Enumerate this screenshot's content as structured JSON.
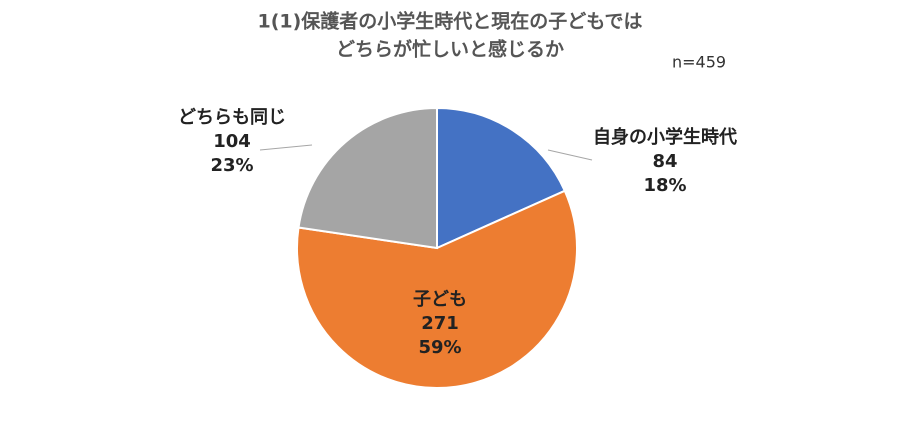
{
  "chart_data": {
    "type": "pie",
    "title": [
      "1(1)保護者の小学生時代と現在の子どもでは",
      "どちらが忙しいと感じるか"
    ],
    "note": "n=459",
    "categories": [
      "自身の小学生時代",
      "子ども",
      "どちらも同じ"
    ],
    "values": [
      84,
      271,
      104
    ],
    "percent_labels": [
      "18%",
      "59%",
      "23%"
    ],
    "colors": [
      "#4472c4",
      "#ed7d31",
      "#a5a5a5"
    ]
  }
}
